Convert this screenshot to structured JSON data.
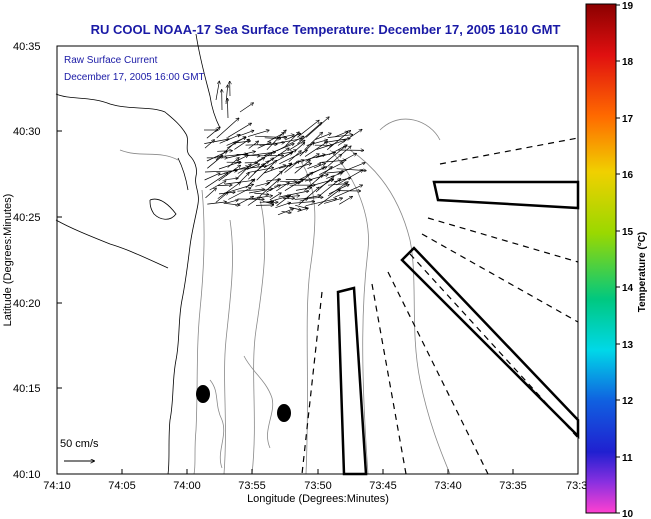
{
  "title": "RU COOL   NOAA-17  Sea Surface Temperature:  December 17, 2005 1610 GMT",
  "legend_box": {
    "line1": "Raw Surface Current",
    "line2": "December 17, 2005 16:00 GMT"
  },
  "scale": {
    "label": "50 cm/s"
  },
  "axes": {
    "xlabel": "Longitude (Degrees:Minutes)",
    "ylabel": "Latitude (Degrees:Minutes)",
    "xticks": [
      "74:10",
      "74:05",
      "74:00",
      "73:55",
      "73:50",
      "73:45",
      "73:40",
      "73:35",
      "73:3"
    ],
    "yticks": [
      "40:35",
      "40:30",
      "40:25",
      "40:20",
      "40:15",
      "40:10"
    ]
  },
  "colorbar": {
    "label": "Temperature (°C)",
    "ticks": [
      "19",
      "18",
      "17",
      "16",
      "15",
      "14",
      "13",
      "12",
      "11",
      "10"
    ],
    "min": 10,
    "max": 19
  },
  "colors": {
    "title": "#1a1aa6",
    "frame": "#000000",
    "contour": "#888888"
  }
}
